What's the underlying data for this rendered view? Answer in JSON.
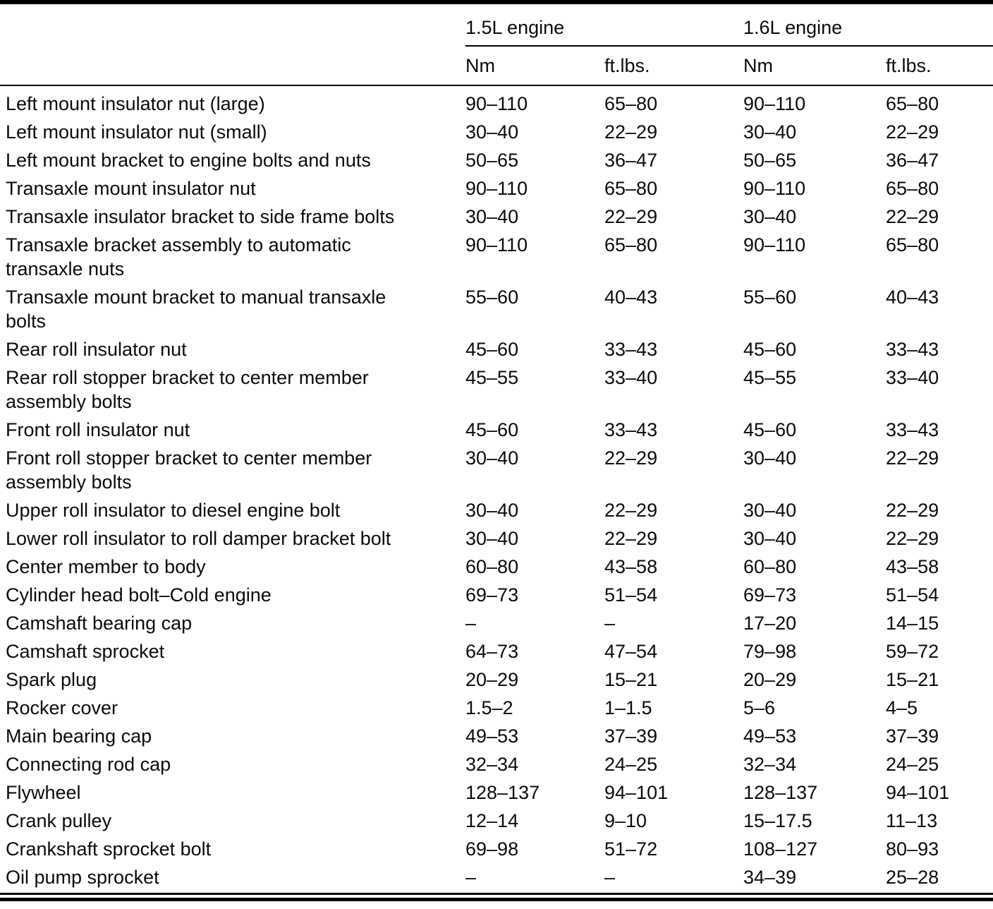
{
  "table": {
    "column_groups": [
      "1.5L engine",
      "1.6L engine"
    ],
    "sub_headers": [
      "Nm",
      "ft.lbs.",
      "Nm",
      "ft.lbs."
    ],
    "rows": [
      {
        "name": "Left mount insulator nut (large)",
        "values": [
          "90–110",
          "65–80",
          "90–110",
          "65–80"
        ]
      },
      {
        "name": "Left mount insulator nut (small)",
        "values": [
          "30–40",
          "22–29",
          "30–40",
          "22–29"
        ]
      },
      {
        "name": "Left mount bracket to engine bolts and nuts",
        "values": [
          "50–65",
          "36–47",
          "50–65",
          "36–47"
        ]
      },
      {
        "name": "Transaxle mount insulator nut",
        "values": [
          "90–110",
          "65–80",
          "90–110",
          "65–80"
        ]
      },
      {
        "name": "Transaxle insulator bracket to side frame bolts",
        "values": [
          "30–40",
          "22–29",
          "30–40",
          "22–29"
        ]
      },
      {
        "name": "Transaxle bracket assembly to automatic transaxle nuts",
        "values": [
          "90–110",
          "65–80",
          "90–110",
          "65–80"
        ]
      },
      {
        "name": "Transaxle mount bracket to manual transaxle bolts",
        "values": [
          "55–60",
          "40–43",
          "55–60",
          "40–43"
        ]
      },
      {
        "name": "Rear roll insulator nut",
        "values": [
          "45–60",
          "33–43",
          "45–60",
          "33–43"
        ]
      },
      {
        "name": "Rear roll stopper bracket to center member assembly bolts",
        "values": [
          "45–55",
          "33–40",
          "45–55",
          "33–40"
        ]
      },
      {
        "name": "Front roll insulator nut",
        "values": [
          "45–60",
          "33–43",
          "45–60",
          "33–43"
        ]
      },
      {
        "name": "Front roll stopper bracket to center member assembly bolts",
        "values": [
          "30–40",
          "22–29",
          "30–40",
          "22–29"
        ]
      },
      {
        "name": "Upper roll insulator to diesel engine bolt",
        "values": [
          "30–40",
          "22–29",
          "30–40",
          "22–29"
        ]
      },
      {
        "name": "Lower roll insulator to roll damper bracket bolt",
        "values": [
          "30–40",
          "22–29",
          "30–40",
          "22–29"
        ]
      },
      {
        "name": "Center member to body",
        "values": [
          "60–80",
          "43–58",
          "60–80",
          "43–58"
        ]
      },
      {
        "name": "Cylinder head bolt–Cold engine",
        "values": [
          "69–73",
          "51–54",
          "69–73",
          "51–54"
        ]
      },
      {
        "name": "Camshaft bearing cap",
        "values": [
          "–",
          "–",
          "17–20",
          "14–15"
        ]
      },
      {
        "name": "Camshaft sprocket",
        "values": [
          "64–73",
          "47–54",
          "79–98",
          "59–72"
        ]
      },
      {
        "name": "Spark plug",
        "values": [
          "20–29",
          "15–21",
          "20–29",
          "15–21"
        ]
      },
      {
        "name": "Rocker cover",
        "values": [
          "1.5–2",
          "1–1.5",
          "5–6",
          "4–5"
        ]
      },
      {
        "name": "Main bearing cap",
        "values": [
          "49–53",
          "37–39",
          "49–53",
          "37–39"
        ]
      },
      {
        "name": "Connecting rod cap",
        "values": [
          "32–34",
          "24–25",
          "32–34",
          "24–25"
        ]
      },
      {
        "name": "Flywheel",
        "values": [
          "128–137",
          "94–101",
          "128–137",
          "94–101"
        ]
      },
      {
        "name": "Crank pulley",
        "values": [
          "12–14",
          "9–10",
          "15–17.5",
          "11–13"
        ]
      },
      {
        "name": "Crankshaft sprocket bolt",
        "values": [
          "69–98",
          "51–72",
          "108–127",
          "80–93"
        ]
      },
      {
        "name": "Oil pump sprocket",
        "values": [
          "–",
          "–",
          "34–39",
          "25–28"
        ]
      }
    ]
  }
}
